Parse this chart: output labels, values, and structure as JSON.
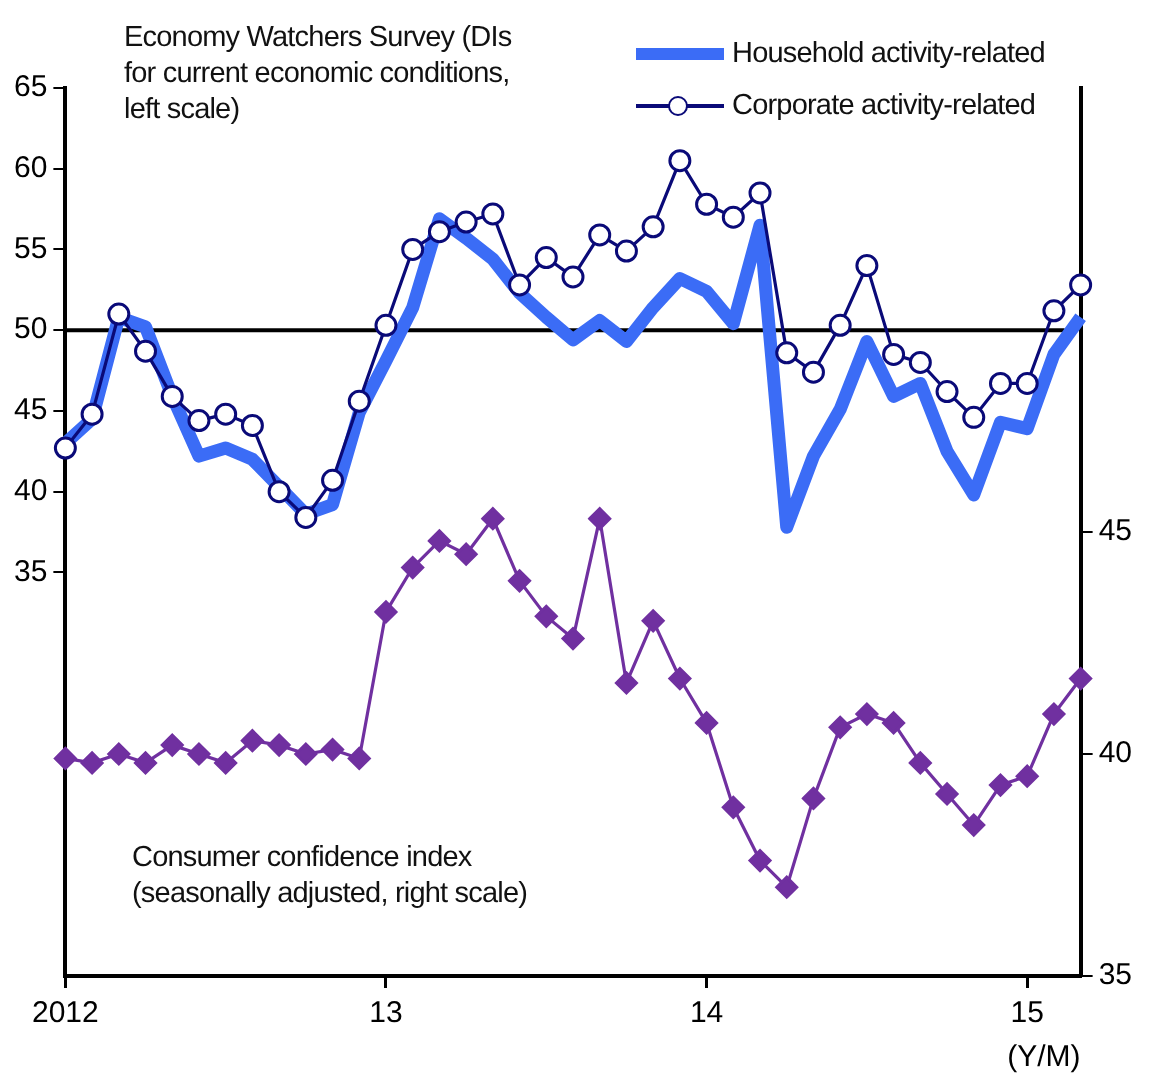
{
  "chart_data": {
    "type": "line",
    "categories": [
      "2012",
      null,
      null,
      null,
      null,
      null,
      null,
      null,
      null,
      null,
      null,
      null,
      "13",
      null,
      null,
      null,
      null,
      null,
      null,
      null,
      null,
      null,
      null,
      null,
      "14",
      null,
      null,
      null,
      null,
      null,
      null,
      null,
      null,
      null,
      null,
      null,
      "15",
      null,
      null
    ],
    "xlabel": "(Y/M)",
    "series": [
      {
        "name": "Household activity-related",
        "color": "#3b6cf6",
        "marker": "none",
        "axis": "y",
        "values": [
          43.0,
          44.5,
          50.8,
          50.2,
          45.9,
          42.2,
          42.7,
          42.0,
          40.3,
          38.6,
          39.2,
          44.9,
          48.1,
          51.4,
          56.9,
          55.7,
          54.4,
          52.3,
          50.8,
          49.4,
          50.6,
          49.3,
          51.4,
          53.2,
          52.4,
          50.4,
          56.5,
          37.8,
          42.2,
          45.1,
          49.3,
          45.9,
          46.7,
          42.5,
          39.8,
          44.3,
          43.9,
          48.5,
          50.8
        ]
      },
      {
        "name": "Corporate activity-related",
        "color": "#0a0a78",
        "marker": "circle",
        "axis": "y",
        "values": [
          42.7,
          44.8,
          51.0,
          48.7,
          45.9,
          44.4,
          44.8,
          44.1,
          40.0,
          38.4,
          40.7,
          45.6,
          50.3,
          55.0,
          56.1,
          56.7,
          57.2,
          52.8,
          54.5,
          53.3,
          55.9,
          54.9,
          56.4,
          60.5,
          57.8,
          57.0,
          58.5,
          48.6,
          47.4,
          50.3,
          54.0,
          48.5,
          48.0,
          46.2,
          44.6,
          46.7,
          46.7,
          51.2,
          52.8
        ]
      },
      {
        "color": "#7030a0",
        "marker": "diamond",
        "axis": "y2",
        "values": [
          39.9,
          39.8,
          40.0,
          39.8,
          40.2,
          40.0,
          39.8,
          40.3,
          40.2,
          40.0,
          40.1,
          39.9,
          43.2,
          44.2,
          44.8,
          44.5,
          45.3,
          43.9,
          43.1,
          42.6,
          45.3,
          41.6,
          43.0,
          41.7,
          40.7,
          38.8,
          37.6,
          37.0,
          39.0,
          40.6,
          40.9,
          40.7,
          39.8,
          39.1,
          38.4,
          39.3,
          39.5,
          40.9,
          41.7
        ]
      }
    ],
    "ylim": [
      10,
      65
    ],
    "yticks": [
      35,
      40,
      45,
      50,
      55,
      60,
      65
    ],
    "y2lim": [
      35,
      55
    ],
    "y2ticks": [
      35,
      40,
      45
    ],
    "ref_lines": [
      {
        "axis": "y",
        "value": 50,
        "color": "#000000"
      }
    ],
    "annotations": [
      "Economy Watchers Survey (DIs for current economic conditions, left scale)",
      "Consumer confidence index (seasonally adjusted, right scale)"
    ],
    "legend": "top right",
    "grid": false
  }
}
